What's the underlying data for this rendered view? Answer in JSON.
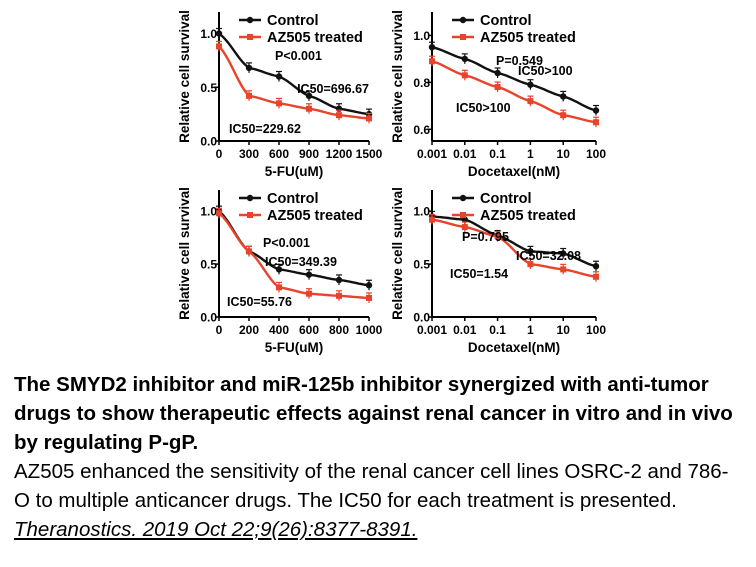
{
  "chart_data": [
    {
      "type": "line",
      "xlabel": "5-FU(uM)",
      "ylabel": "Relative cell survival",
      "x_ticks": [
        "0",
        "300",
        "600",
        "900",
        "1200",
        "1500"
      ],
      "y_ticks": [
        "0.0",
        "0.5",
        "1.0"
      ],
      "xlim": [
        0,
        1500
      ],
      "ylim": [
        0,
        1.2
      ],
      "x_scale": "linear",
      "legend": [
        "Control",
        "AZ505 treated"
      ],
      "annotations": [
        "P<0.001",
        "IC50=696.67",
        "IC50=229.62"
      ],
      "series": [
        {
          "name": "Control",
          "color": "#111111",
          "x": [
            0,
            300,
            600,
            900,
            1200,
            1500
          ],
          "y": [
            1.0,
            0.68,
            0.6,
            0.42,
            0.3,
            0.25
          ]
        },
        {
          "name": "AZ505 treated",
          "color": "#e8442c",
          "x": [
            0,
            300,
            600,
            900,
            1200,
            1500
          ],
          "y": [
            0.88,
            0.42,
            0.35,
            0.3,
            0.24,
            0.21
          ]
        }
      ]
    },
    {
      "type": "line",
      "xlabel": "Docetaxel(nM)",
      "ylabel": "Relative cell survival",
      "x_ticks": [
        "0.001",
        "0.01",
        "0.1",
        "1",
        "10",
        "100"
      ],
      "y_ticks": [
        "0.6",
        "0.8",
        "1.0"
      ],
      "xlim": [
        0.001,
        100
      ],
      "ylim": [
        0.55,
        1.1
      ],
      "x_scale": "log",
      "legend": [
        "Control",
        "AZ505 treated"
      ],
      "annotations": [
        "P=0.549",
        "IC50>100",
        "IC50>100"
      ],
      "series": [
        {
          "name": "Control",
          "color": "#111111",
          "x": [
            0.001,
            0.01,
            0.1,
            1,
            10,
            100
          ],
          "y": [
            0.95,
            0.9,
            0.84,
            0.79,
            0.74,
            0.68
          ]
        },
        {
          "name": "AZ505 treated",
          "color": "#e8442c",
          "x": [
            0.001,
            0.01,
            0.1,
            1,
            10,
            100
          ],
          "y": [
            0.89,
            0.83,
            0.78,
            0.72,
            0.66,
            0.63
          ]
        }
      ]
    },
    {
      "type": "line",
      "xlabel": "5-FU(uM)",
      "ylabel": "Relative cell survival",
      "x_ticks": [
        "0",
        "200",
        "400",
        "600",
        "800",
        "1000"
      ],
      "y_ticks": [
        "0.0",
        "0.5",
        "1.0"
      ],
      "xlim": [
        0,
        1000
      ],
      "ylim": [
        0,
        1.2
      ],
      "x_scale": "linear",
      "legend": [
        "Control",
        "AZ505 treated"
      ],
      "annotations": [
        "P<0.001",
        "IC50=349.39",
        "IC50=55.76"
      ],
      "series": [
        {
          "name": "Control",
          "color": "#111111",
          "x": [
            0,
            200,
            400,
            600,
            800,
            1000
          ],
          "y": [
            1.0,
            0.62,
            0.45,
            0.4,
            0.35,
            0.3
          ]
        },
        {
          "name": "AZ505 treated",
          "color": "#e8442c",
          "x": [
            0,
            200,
            400,
            600,
            800,
            1000
          ],
          "y": [
            0.98,
            0.62,
            0.28,
            0.22,
            0.2,
            0.18
          ]
        }
      ]
    },
    {
      "type": "line",
      "xlabel": "Docetaxel(nM)",
      "ylabel": "Relative cell survival",
      "x_ticks": [
        "0.001",
        "0.01",
        "0.1",
        "1",
        "10",
        "100"
      ],
      "y_ticks": [
        "0.0",
        "0.5",
        "1.0"
      ],
      "xlim": [
        0.001,
        100
      ],
      "ylim": [
        0,
        1.2
      ],
      "x_scale": "log",
      "legend": [
        "Control",
        "AZ505 treated"
      ],
      "annotations": [
        "P=0.795",
        "IC50=32.08",
        "IC50=1.54"
      ],
      "series": [
        {
          "name": "Control",
          "color": "#111111",
          "x": [
            0.001,
            0.01,
            0.1,
            1,
            10,
            100
          ],
          "y": [
            0.95,
            0.92,
            0.77,
            0.62,
            0.6,
            0.48
          ]
        },
        {
          "name": "AZ505 treated",
          "color": "#e8442c",
          "x": [
            0.001,
            0.01,
            0.1,
            1,
            10,
            100
          ],
          "y": [
            0.92,
            0.85,
            0.76,
            0.5,
            0.45,
            0.38
          ]
        }
      ]
    }
  ],
  "caption": {
    "title": "The SMYD2 inhibitor and miR-125b inhibitor synergized with anti-tumor drugs to show therapeutic effects against renal cancer in vitro and in vivo by regulating P-gP.",
    "body": "AZ505 enhanced the sensitivity of the renal cancer cell lines OSRC-2 and 786-O to multiple anticancer drugs. The IC50 for each treatment is presented. ",
    "citation": "Theranostics. 2019 Oct 22;9(26):8377-8391."
  }
}
